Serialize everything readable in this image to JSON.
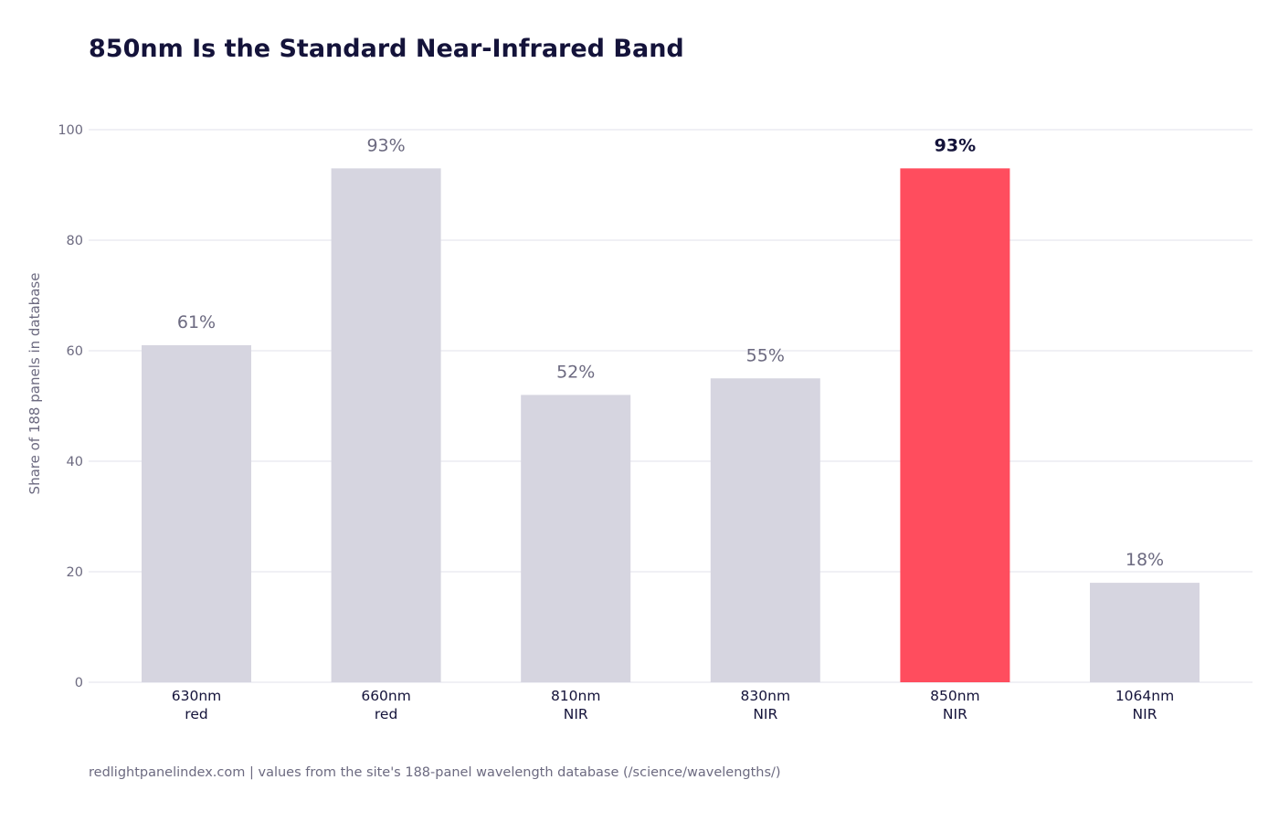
{
  "chart_data": {
    "type": "bar",
    "title": "850nm Is the Standard Near-Infrared Band",
    "ylabel": "Share of 188 panels in database",
    "xlabel": "",
    "ylim": [
      0,
      100
    ],
    "yticks": [
      0,
      20,
      40,
      60,
      80,
      100
    ],
    "grid": true,
    "categories": [
      {
        "line1": "630nm",
        "line2": "red"
      },
      {
        "line1": "660nm",
        "line2": "red"
      },
      {
        "line1": "810nm",
        "line2": "NIR"
      },
      {
        "line1": "830nm",
        "line2": "NIR"
      },
      {
        "line1": "850nm",
        "line2": "NIR"
      },
      {
        "line1": "1064nm",
        "line2": "NIR"
      }
    ],
    "values": [
      61,
      93,
      52,
      55,
      93,
      18
    ],
    "value_labels": [
      "61%",
      "93%",
      "52%",
      "55%",
      "93%",
      "18%"
    ],
    "highlight_index": 4,
    "colors": {
      "bar": "#d6d5e0",
      "highlight": "#ff4d5e",
      "grid": "#e8e7ef",
      "tick_text": "#6c6a80",
      "category_text": "#14133a",
      "label_text": "#6c6a80",
      "highlight_label_text": "#14133a"
    }
  },
  "footer": {
    "source": "redlightpanelindex.com | values from the site's 188-panel wavelength database (/science/wavelengths/)"
  }
}
